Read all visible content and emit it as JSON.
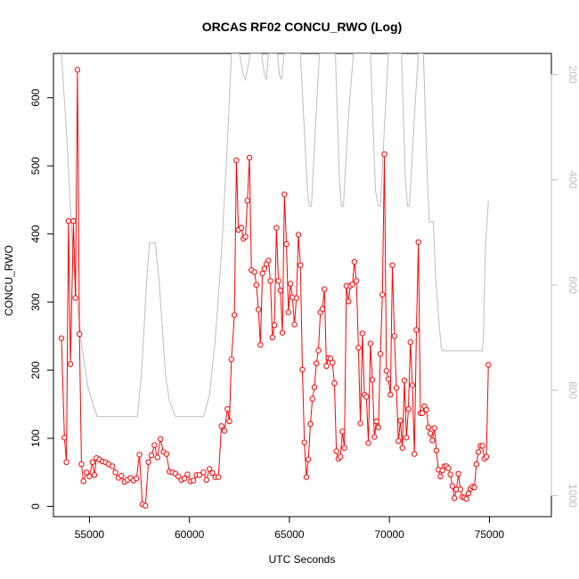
{
  "chart_data": {
    "type": "line",
    "title": "ORCAS RF02 CONCU_RWO (Log)",
    "xlabel": "UTC Seconds",
    "ylabel": "CONCU_RWO",
    "xlim": [
      53200,
      78100
    ],
    "ylim": [
      -15,
      665
    ],
    "y2lim": [
      160,
      1040
    ],
    "y2_reversed": true,
    "x_ticks": [
      {
        "value": 55000,
        "label": "55000"
      },
      {
        "value": 60000,
        "label": "60000"
      },
      {
        "value": 65000,
        "label": "65000"
      },
      {
        "value": 70000,
        "label": "70000"
      },
      {
        "value": 75000,
        "label": "75000"
      }
    ],
    "y_ticks": [
      {
        "value": 0,
        "label": "0"
      },
      {
        "value": 100,
        "label": "100"
      },
      {
        "value": 200,
        "label": "200"
      },
      {
        "value": 300,
        "label": "300"
      },
      {
        "value": 400,
        "label": "400"
      },
      {
        "value": 500,
        "label": "500"
      },
      {
        "value": 600,
        "label": "600"
      }
    ],
    "y2_ticks": [
      {
        "value": 200,
        "label": "200"
      },
      {
        "value": 400,
        "label": "400"
      },
      {
        "value": 600,
        "label": "600"
      },
      {
        "value": 800,
        "label": "800"
      },
      {
        "value": 1000,
        "label": "1000"
      }
    ],
    "grid": false,
    "series": [
      {
        "color": "#ff0000",
        "style": "line-with-open-circles",
        "points": [
          [
            53600,
            247
          ],
          [
            53750,
            101
          ],
          [
            53850,
            65
          ],
          [
            53950,
            419
          ],
          [
            54050,
            209
          ],
          [
            54200,
            419
          ],
          [
            54300,
            306
          ],
          [
            54400,
            641
          ],
          [
            54500,
            253
          ],
          [
            54600,
            62
          ],
          [
            54700,
            37
          ],
          [
            54850,
            50
          ],
          [
            55000,
            44
          ],
          [
            55150,
            65
          ],
          [
            55250,
            46
          ],
          [
            55350,
            71
          ],
          [
            55500,
            69
          ],
          [
            55650,
            66
          ],
          [
            55800,
            65
          ],
          [
            55950,
            62
          ],
          [
            56150,
            59
          ],
          [
            56300,
            50
          ],
          [
            56450,
            42
          ],
          [
            56600,
            45
          ],
          [
            56750,
            36
          ],
          [
            56900,
            39
          ],
          [
            57050,
            42
          ],
          [
            57200,
            38
          ],
          [
            57350,
            41
          ],
          [
            57500,
            76
          ],
          [
            57650,
            3
          ],
          [
            57800,
            1
          ],
          [
            57950,
            65
          ],
          [
            58100,
            75
          ],
          [
            58250,
            90
          ],
          [
            58400,
            72
          ],
          [
            58550,
            99
          ],
          [
            58700,
            80
          ],
          [
            58850,
            77
          ],
          [
            59000,
            51
          ],
          [
            59150,
            50
          ],
          [
            59300,
            48
          ],
          [
            59450,
            44
          ],
          [
            59600,
            39
          ],
          [
            59750,
            41
          ],
          [
            59900,
            47
          ],
          [
            60050,
            37
          ],
          [
            60200,
            38
          ],
          [
            60350,
            46
          ],
          [
            60500,
            46
          ],
          [
            60700,
            50
          ],
          [
            60850,
            39
          ],
          [
            61000,
            55
          ],
          [
            61150,
            49
          ],
          [
            61300,
            43
          ],
          [
            61450,
            43
          ],
          [
            61600,
            118
          ],
          [
            61750,
            111
          ],
          [
            61900,
            143
          ],
          [
            62000,
            125
          ],
          [
            62100,
            216
          ],
          [
            62250,
            281
          ],
          [
            62350,
            508
          ],
          [
            62450,
            406
          ],
          [
            62600,
            409
          ],
          [
            62700,
            393
          ],
          [
            62800,
            396
          ],
          [
            62900,
            449
          ],
          [
            63000,
            512
          ],
          [
            63100,
            347
          ],
          [
            63250,
            344
          ],
          [
            63350,
            325
          ],
          [
            63450,
            289
          ],
          [
            63550,
            237
          ],
          [
            63650,
            342
          ],
          [
            63750,
            349
          ],
          [
            63850,
            356
          ],
          [
            63950,
            361
          ],
          [
            64050,
            331
          ],
          [
            64150,
            248
          ],
          [
            64250,
            266
          ],
          [
            64350,
            409
          ],
          [
            64450,
            331
          ],
          [
            64550,
            317
          ],
          [
            64650,
            255
          ],
          [
            64750,
            458
          ],
          [
            64850,
            385
          ],
          [
            64950,
            285
          ],
          [
            65050,
            327
          ],
          [
            65150,
            307
          ],
          [
            65250,
            267
          ],
          [
            65350,
            306
          ],
          [
            65450,
            399
          ],
          [
            65550,
            354
          ],
          [
            65650,
            201
          ],
          [
            65750,
            94
          ],
          [
            65850,
            43
          ],
          [
            65950,
            69
          ],
          [
            66050,
            121
          ],
          [
            66150,
            158
          ],
          [
            66250,
            175
          ],
          [
            66350,
            210
          ],
          [
            66450,
            229
          ],
          [
            66550,
            285
          ],
          [
            66650,
            290
          ],
          [
            66750,
            319
          ],
          [
            66850,
            206
          ],
          [
            66950,
            218
          ],
          [
            67050,
            217
          ],
          [
            67150,
            211
          ],
          [
            67250,
            181
          ],
          [
            67350,
            81
          ],
          [
            67450,
            70
          ],
          [
            67550,
            73
          ],
          [
            67650,
            110
          ],
          [
            67750,
            86
          ],
          [
            67850,
            324
          ],
          [
            67950,
            301
          ],
          [
            68050,
            324
          ],
          [
            68150,
            326
          ],
          [
            68250,
            359
          ],
          [
            68350,
            331
          ],
          [
            68450,
            233
          ],
          [
            68550,
            122
          ],
          [
            68650,
            254
          ],
          [
            68750,
            164
          ],
          [
            68850,
            161
          ],
          [
            68950,
            93
          ],
          [
            69050,
            239
          ],
          [
            69150,
            186
          ],
          [
            69250,
            102
          ],
          [
            69350,
            125
          ],
          [
            69450,
            116
          ],
          [
            69550,
            224
          ],
          [
            69650,
            311
          ],
          [
            69750,
            517
          ],
          [
            69850,
            199
          ],
          [
            69950,
            187
          ],
          [
            70050,
            164
          ],
          [
            70150,
            354
          ],
          [
            70250,
            250
          ],
          [
            70350,
            174
          ],
          [
            70450,
            96
          ],
          [
            70550,
            126
          ],
          [
            70650,
            86
          ],
          [
            70750,
            185
          ],
          [
            70850,
            101
          ],
          [
            70950,
            143
          ],
          [
            71050,
            241
          ],
          [
            71150,
            178
          ],
          [
            71250,
            77
          ],
          [
            71350,
            259
          ],
          [
            71450,
            388
          ],
          [
            71550,
            137
          ],
          [
            71650,
            137
          ],
          [
            71750,
            147
          ],
          [
            71850,
            142
          ],
          [
            71950,
            116
          ],
          [
            72050,
            107
          ],
          [
            72150,
            97
          ],
          [
            72250,
            115
          ],
          [
            72350,
            82
          ],
          [
            72450,
            54
          ],
          [
            72550,
            44
          ],
          [
            72650,
            53
          ],
          [
            72750,
            59
          ],
          [
            72850,
            59
          ],
          [
            72950,
            56
          ],
          [
            73050,
            47
          ],
          [
            73150,
            30
          ],
          [
            73250,
            12
          ],
          [
            73350,
            25
          ],
          [
            73450,
            48
          ],
          [
            73550,
            25
          ],
          [
            73650,
            14
          ],
          [
            73750,
            13
          ],
          [
            73850,
            11
          ],
          [
            73950,
            19
          ],
          [
            74050,
            26
          ],
          [
            74150,
            29
          ],
          [
            74250,
            28
          ],
          [
            74350,
            62
          ],
          [
            74450,
            80
          ],
          [
            74550,
            89
          ],
          [
            74650,
            89
          ],
          [
            74750,
            70
          ],
          [
            74850,
            73
          ],
          [
            74950,
            208
          ]
        ]
      },
      {
        "color": "#bdbdbd",
        "style": "line",
        "axis": "secondary",
        "points": [
          [
            53600,
            160
          ],
          [
            53900,
            340
          ],
          [
            54200,
            560
          ],
          [
            54600,
            710
          ],
          [
            54900,
            790
          ],
          [
            55200,
            830
          ],
          [
            55400,
            850
          ],
          [
            57400,
            850
          ],
          [
            57600,
            770
          ],
          [
            57850,
            600
          ],
          [
            58000,
            520
          ],
          [
            58300,
            520
          ],
          [
            58500,
            600
          ],
          [
            58800,
            770
          ],
          [
            59000,
            820
          ],
          [
            59300,
            850
          ],
          [
            60700,
            850
          ],
          [
            61000,
            810
          ],
          [
            61300,
            700
          ],
          [
            61600,
            540
          ],
          [
            61900,
            330
          ],
          [
            62100,
            160
          ],
          [
            62500,
            160
          ],
          [
            62700,
            200
          ],
          [
            62800,
            210
          ],
          [
            63050,
            160
          ],
          [
            63600,
            160
          ],
          [
            63750,
            200
          ],
          [
            63850,
            210
          ],
          [
            63950,
            160
          ],
          [
            64400,
            160
          ],
          [
            64500,
            200
          ],
          [
            64600,
            210
          ],
          [
            64750,
            160
          ],
          [
            65550,
            160
          ],
          [
            65900,
            420
          ],
          [
            66000,
            450
          ],
          [
            66100,
            450
          ],
          [
            66300,
            300
          ],
          [
            66500,
            160
          ],
          [
            67300,
            160
          ],
          [
            67500,
            400
          ],
          [
            67600,
            450
          ],
          [
            67700,
            450
          ],
          [
            67950,
            280
          ],
          [
            68200,
            160
          ],
          [
            69050,
            160
          ],
          [
            69300,
            420
          ],
          [
            69450,
            450
          ],
          [
            69550,
            450
          ],
          [
            69750,
            300
          ],
          [
            69950,
            160
          ],
          [
            70600,
            160
          ],
          [
            70800,
            400
          ],
          [
            70900,
            450
          ],
          [
            71000,
            450
          ],
          [
            71250,
            280
          ],
          [
            71450,
            160
          ],
          [
            71700,
            160
          ],
          [
            71900,
            400
          ],
          [
            72000,
            480
          ],
          [
            72200,
            480
          ],
          [
            72300,
            580
          ],
          [
            72500,
            680
          ],
          [
            72600,
            720
          ],
          [
            72700,
            725
          ],
          [
            74650,
            725
          ],
          [
            74700,
            700
          ],
          [
            74800,
            530
          ],
          [
            74950,
            440
          ]
        ]
      }
    ]
  }
}
